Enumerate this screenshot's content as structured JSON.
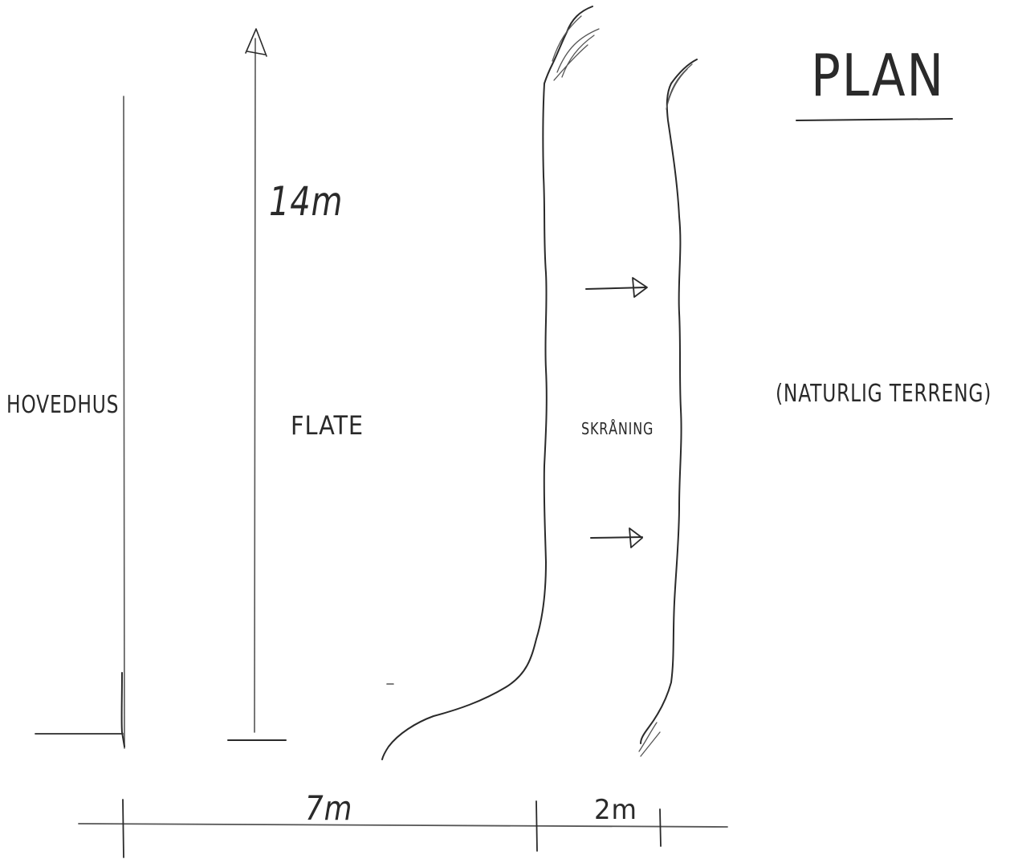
{
  "title": "PLAN",
  "labels": {
    "main_house": "HOVEDHUS",
    "flat_area": "FLATE",
    "slope": "SKRÅNING",
    "natural_terrain": "(NATURLIG TERRENG)"
  },
  "dimensions": {
    "length": "14m",
    "width_flat": "7m",
    "width_slope": "2m"
  },
  "ink_color": "#2a2a2a"
}
